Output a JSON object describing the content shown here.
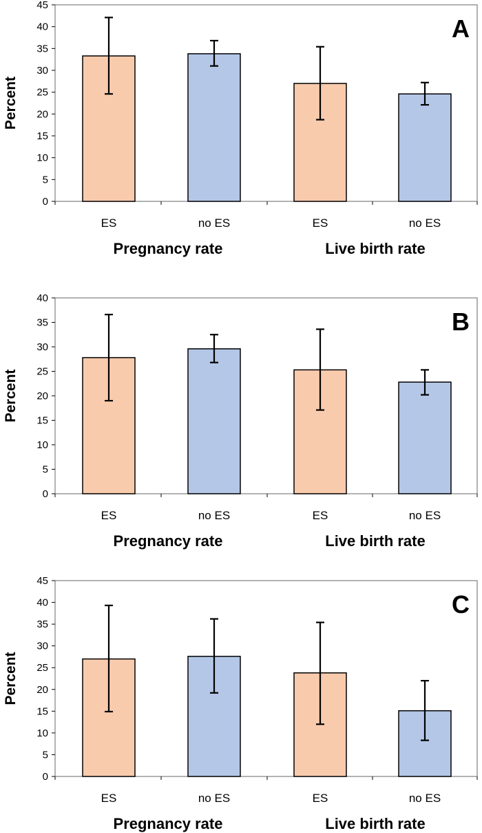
{
  "colors": {
    "es": "#f8cbad",
    "no_es": "#b4c7e7",
    "outline": "#000000"
  },
  "chart_data": [
    {
      "type": "bar",
      "panel": "A",
      "ylabel": "Percent",
      "ylim": [
        0,
        45
      ],
      "yticks": [
        0,
        5,
        10,
        15,
        20,
        25,
        30,
        35,
        40,
        45
      ],
      "categories": [
        "ES",
        "no ES",
        "ES",
        "no ES"
      ],
      "groups": [
        "Pregnancy rate",
        "Live birth rate"
      ],
      "values": [
        33.3,
        33.8,
        27.0,
        24.6
      ],
      "error_low": [
        24.6,
        31.0,
        18.7,
        22.1
      ],
      "error_high": [
        42.1,
        36.8,
        35.4,
        27.2
      ]
    },
    {
      "type": "bar",
      "panel": "B",
      "ylabel": "Percent",
      "ylim": [
        0,
        40
      ],
      "yticks": [
        0,
        5,
        10,
        15,
        20,
        25,
        30,
        35,
        40
      ],
      "categories": [
        "ES",
        "no ES",
        "ES",
        "no ES"
      ],
      "groups": [
        "Pregnancy rate",
        "Live birth rate"
      ],
      "values": [
        27.8,
        29.6,
        25.3,
        22.8
      ],
      "error_low": [
        19.0,
        26.8,
        17.1,
        20.2
      ],
      "error_high": [
        36.6,
        32.5,
        33.6,
        25.3
      ]
    },
    {
      "type": "bar",
      "panel": "C",
      "ylabel": "Percent",
      "ylim": [
        0,
        45
      ],
      "yticks": [
        0,
        5,
        10,
        15,
        20,
        25,
        30,
        35,
        40,
        45
      ],
      "categories": [
        "ES",
        "no ES",
        "ES",
        "no ES"
      ],
      "groups": [
        "Pregnancy rate",
        "Live birth rate"
      ],
      "values": [
        27.0,
        27.6,
        23.8,
        15.1
      ],
      "error_low": [
        14.9,
        19.2,
        12.0,
        8.3
      ],
      "error_high": [
        39.3,
        36.2,
        35.4,
        22.0
      ]
    }
  ]
}
